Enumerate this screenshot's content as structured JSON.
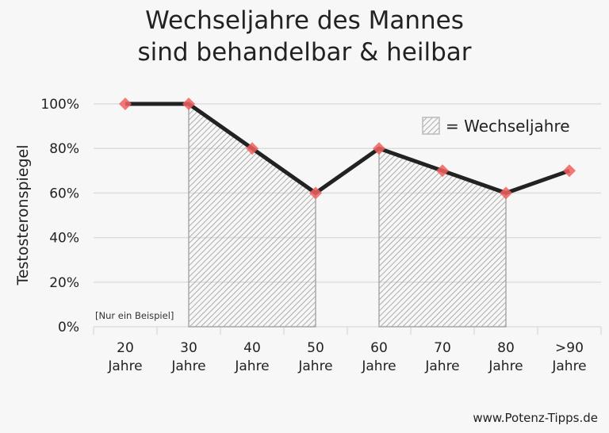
{
  "chart_data": {
    "type": "line",
    "title": [
      "Wechseljahre des Mannes",
      "sind behandelbar & heilbar"
    ],
    "ylabel": "Testosteronspiegel",
    "xlabel": "",
    "categories": [
      [
        "20",
        "Jahre"
      ],
      [
        "30",
        "Jahre"
      ],
      [
        "40",
        "Jahre"
      ],
      [
        "50",
        "Jahre"
      ],
      [
        "60",
        "Jahre"
      ],
      [
        "70",
        "Jahre"
      ],
      [
        "80",
        "Jahre"
      ],
      [
        ">90",
        "Jahre"
      ]
    ],
    "values": [
      100,
      100,
      80,
      60,
      80,
      70,
      60,
      70
    ],
    "ylim": [
      0,
      100
    ],
    "yticks": [
      "0%",
      "20%",
      "40%",
      "60%",
      "80%",
      "100%"
    ],
    "shaded_ranges": [
      [
        "30",
        "50"
      ],
      [
        "60",
        "80"
      ]
    ],
    "legend": {
      "label": "= Wechseljahre",
      "placement": "top-right"
    },
    "annotation": "[Nur ein Beispiel]",
    "grid": true,
    "colors": {
      "line": "#222222",
      "marker": "#f0625e",
      "hatch": "#999999",
      "grid": "#dddddd"
    }
  },
  "footer": {
    "source": "www.Potenz-Tipps.de"
  }
}
